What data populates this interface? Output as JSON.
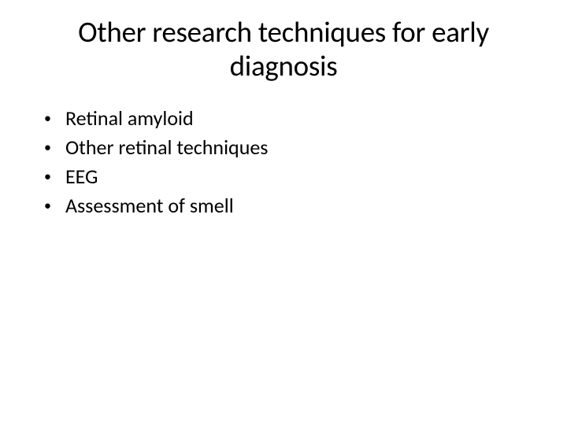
{
  "slide": {
    "title": "Other research techniques for early diagnosis",
    "title_fontsize": 37,
    "title_color": "#000000",
    "title_align": "center",
    "background_color": "#ffffff",
    "bullets": [
      {
        "text": "Retinal amyloid"
      },
      {
        "text": "Other retinal techniques"
      },
      {
        "text": "EEG"
      },
      {
        "text": "Assessment of smell"
      }
    ],
    "bullet_fontsize": 26,
    "bullet_color": "#000000",
    "bullet_marker": "•",
    "bullet_marker_color": "#000000",
    "font_family": "Calibri"
  }
}
